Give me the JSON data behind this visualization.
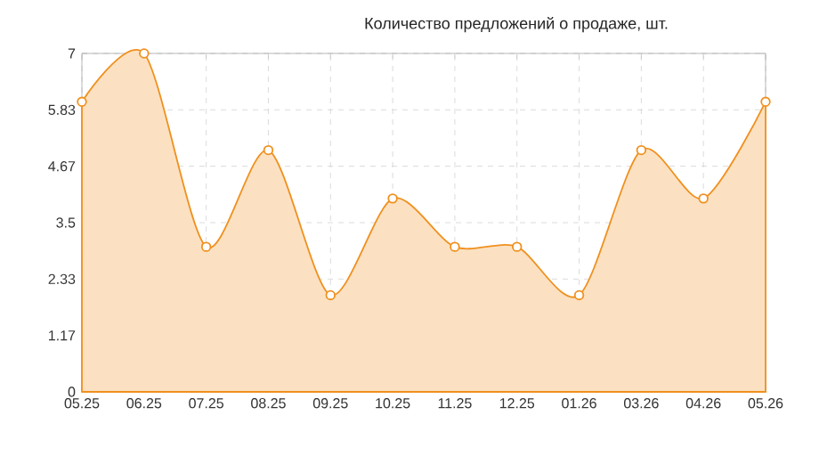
{
  "chart_data": {
    "type": "area",
    "title": "Количество предложений о продаже, шт.",
    "categories": [
      "05.25",
      "06.25",
      "07.25",
      "08.25",
      "09.25",
      "10.25",
      "11.25",
      "12.25",
      "01.26",
      "03.26",
      "04.26",
      "05.26"
    ],
    "values": [
      6,
      7,
      3,
      5,
      2,
      4,
      3,
      3,
      2,
      5,
      4,
      6
    ],
    "color": "#f0901e",
    "ylim": [
      0,
      7
    ],
    "yticks": [
      0,
      {
        "value": 1.1667,
        "label": "1.17"
      },
      {
        "value": 2.3333,
        "label": "2.33"
      },
      3.5,
      {
        "value": 4.6667,
        "label": "4.67"
      },
      {
        "value": 5.8333,
        "label": "5.83"
      },
      7
    ],
    "grid": true,
    "marker": "circle",
    "line_style": "solid"
  }
}
